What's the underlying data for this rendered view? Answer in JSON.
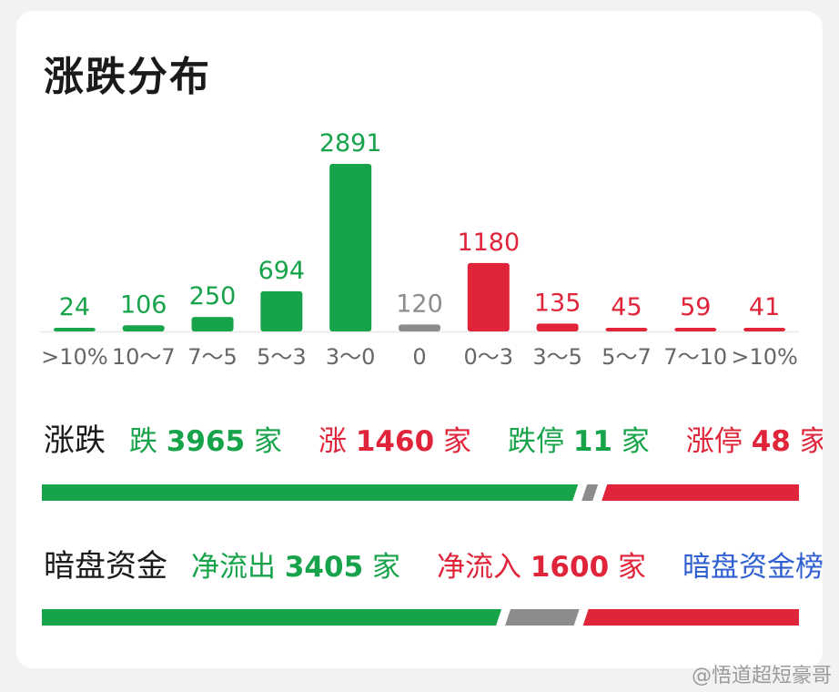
{
  "title": "涨跌分布",
  "colors": {
    "fall": "#17a34a",
    "rise": "#e0243a",
    "flat": "#8c8c8c",
    "link": "#2f5fd0"
  },
  "chart_data": {
    "type": "bar",
    "categories": [
      ">10%",
      "10～7",
      "7～5",
      "5～3",
      "3～0",
      "0",
      "0～3",
      "3～5",
      "5～7",
      "7～10",
      ">10%"
    ],
    "values": [
      24,
      106,
      250,
      694,
      2891,
      120,
      1180,
      135,
      45,
      59,
      41
    ],
    "value_labels": [
      "24",
      "106",
      "250",
      "694",
      "2891",
      "120",
      "1180",
      "135",
      "45",
      "59",
      "41"
    ],
    "bar_colors": [
      "fall",
      "fall",
      "fall",
      "fall",
      "fall",
      "flat",
      "rise",
      "rise",
      "rise",
      "rise",
      "rise"
    ],
    "title": "",
    "xlabel": "",
    "ylabel": ""
  },
  "stats": {
    "label": "涨跌",
    "items": [
      {
        "prefix": "跌 ",
        "num": "3965",
        "suffix": " 家",
        "color": "green"
      },
      {
        "prefix": "涨 ",
        "num": "1460",
        "suffix": " 家",
        "color": "red"
      },
      {
        "prefix": "跌停 ",
        "num": "11",
        "suffix": " 家",
        "color": "green"
      },
      {
        "prefix": "涨停 ",
        "num": "48",
        "suffix": " 家",
        "color": "red"
      }
    ],
    "ratio": {
      "fall": 3965,
      "flat": 120,
      "rise": 1460
    }
  },
  "dark_pool": {
    "label": "暗盘资金",
    "items": [
      {
        "prefix": "净流出 ",
        "num": "3405",
        "suffix": " 家",
        "color": "green"
      },
      {
        "prefix": "净流入 ",
        "num": "1600",
        "suffix": " 家",
        "color": "red"
      }
    ],
    "link": "暗盘资金榜",
    "ratio": {
      "fall": 3405,
      "flat": 550,
      "rise": 1600
    }
  },
  "watermark": "@悟道超短豪哥"
}
